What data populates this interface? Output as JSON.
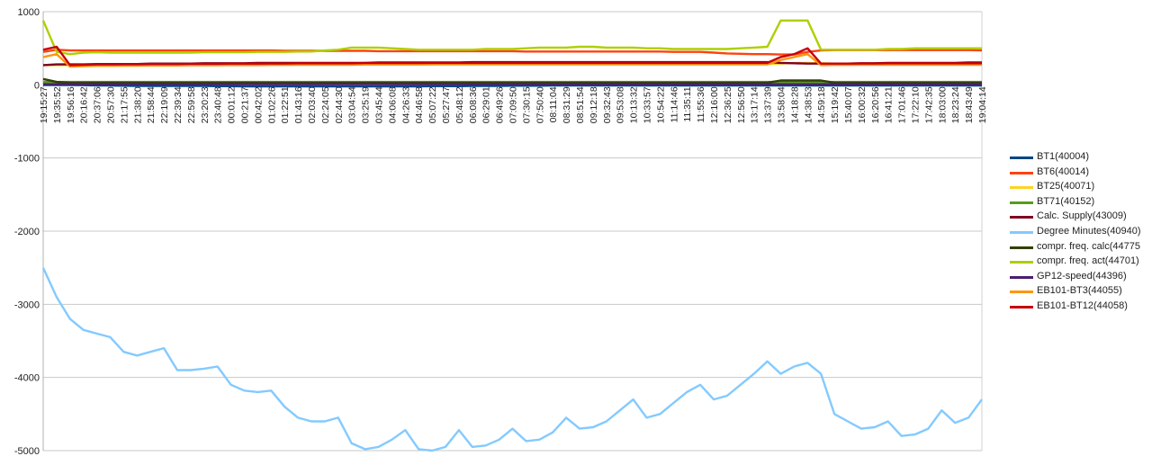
{
  "chart_data": {
    "type": "line",
    "title": "",
    "xlabel": "",
    "ylabel": "",
    "ylim": [
      -5000,
      1000
    ],
    "yticks": [
      1000,
      0,
      -1000,
      -2000,
      -3000,
      -4000,
      -5000
    ],
    "grid": true,
    "legend_position": "right",
    "categories": [
      "19:15:27",
      "19:35:52",
      "19:56:16",
      "20:16:42",
      "20:37:06",
      "20:57:30",
      "21:17:55",
      "21:38:20",
      "21:58:44",
      "22:19:09",
      "22:39:34",
      "22:59:58",
      "23:20:23",
      "23:40:48",
      "00:01:12",
      "00:21:37",
      "00:42:02",
      "01:02:26",
      "01:22:51",
      "01:43:16",
      "02:03:40",
      "02:24:05",
      "02:44:30",
      "03:04:54",
      "03:25:19",
      "03:45:44",
      "04:06:08",
      "04:26:33",
      "04:46:58",
      "05:07:22",
      "05:27:47",
      "05:48:12",
      "06:08:36",
      "06:29:01",
      "06:49:26",
      "07:09:50",
      "07:30:15",
      "07:50:40",
      "08:11:04",
      "08:31:29",
      "08:51:54",
      "09:12:18",
      "09:32:43",
      "09:53:08",
      "10:13:32",
      "10:33:57",
      "10:54:22",
      "11:14:46",
      "11:35:11",
      "11:55:36",
      "12:16:00",
      "12:36:25",
      "12:56:50",
      "13:17:14",
      "13:37:39",
      "13:58:04",
      "14:18:28",
      "14:38:53",
      "14:59:18",
      "15:19:42",
      "15:40:07",
      "16:00:32",
      "16:20:56",
      "16:41:21",
      "17:01:46",
      "17:22:10",
      "17:42:35",
      "18:03:00",
      "18:23:24",
      "18:43:49",
      "19:04:14"
    ],
    "series": [
      {
        "name": "BT1(40004)",
        "color": "#004586",
        "values": [
          -2,
          -2,
          -3,
          -5,
          -8,
          -10,
          -12,
          -15,
          -15,
          -15,
          -15,
          -15,
          -15,
          -18,
          -18,
          -20,
          -20,
          -20,
          -20,
          -20,
          -20,
          -20,
          -22,
          -22,
          -22,
          -22,
          -20,
          -20,
          -20,
          -18,
          -18,
          -18,
          -15,
          -15,
          -15,
          -12,
          -12,
          -12,
          -10,
          -10,
          -10,
          -10,
          -10,
          -8,
          -8,
          -8,
          -8,
          -8,
          -8,
          -8,
          -8,
          -10,
          -10,
          -10,
          -10,
          -10,
          -10,
          -10,
          -10,
          -10,
          -10,
          -10,
          -10,
          -10,
          -10,
          -10,
          -10,
          -10,
          -10,
          -10,
          -10
        ]
      },
      {
        "name": "BT6(40014)",
        "color": "#ff420e",
        "values": [
          450,
          480,
          470,
          470,
          470,
          470,
          470,
          470,
          470,
          470,
          470,
          470,
          470,
          470,
          470,
          470,
          470,
          470,
          465,
          465,
          465,
          465,
          465,
          465,
          465,
          460,
          460,
          460,
          460,
          460,
          460,
          460,
          460,
          460,
          460,
          460,
          455,
          455,
          455,
          455,
          455,
          455,
          455,
          455,
          455,
          455,
          455,
          450,
          450,
          450,
          440,
          430,
          425,
          420,
          420,
          415,
          415,
          450,
          470,
          475,
          475,
          475,
          475,
          475,
          475,
          475,
          475,
          475,
          475,
          475,
          470
        ]
      },
      {
        "name": "BT25(40071)",
        "color": "#ffd320",
        "values": [
          270,
          270,
          270,
          272,
          272,
          272,
          272,
          272,
          275,
          275,
          275,
          275,
          275,
          275,
          278,
          278,
          278,
          278,
          280,
          280,
          280,
          280,
          280,
          280,
          282,
          282,
          282,
          282,
          282,
          282,
          285,
          285,
          285,
          285,
          285,
          285,
          285,
          285,
          285,
          285,
          285,
          285,
          285,
          285,
          285,
          285,
          285,
          285,
          285,
          285,
          285,
          285,
          285,
          285,
          285,
          290,
          300,
          300,
          295,
          290,
          288,
          288,
          288,
          288,
          288,
          288,
          288,
          288,
          288,
          288,
          288
        ]
      },
      {
        "name": "BT71(40152)",
        "color": "#579d1c",
        "values": [
          40,
          40,
          40,
          40,
          40,
          40,
          40,
          40,
          40,
          40,
          40,
          40,
          40,
          40,
          40,
          40,
          40,
          40,
          40,
          40,
          40,
          40,
          40,
          40,
          40,
          40,
          40,
          40,
          40,
          40,
          40,
          40,
          40,
          40,
          40,
          40,
          40,
          40,
          40,
          40,
          40,
          40,
          40,
          40,
          40,
          40,
          40,
          40,
          40,
          40,
          40,
          40,
          40,
          40,
          40,
          40,
          40,
          40,
          40,
          40,
          40,
          40,
          40,
          40,
          40,
          40,
          40,
          40,
          40,
          40,
          40
        ]
      },
      {
        "name": "Calc. Supply(43009)",
        "color": "#7e0021",
        "values": [
          270,
          280,
          280,
          280,
          285,
          285,
          285,
          285,
          290,
          290,
          290,
          290,
          295,
          295,
          295,
          295,
          300,
          300,
          300,
          300,
          300,
          300,
          300,
          300,
          300,
          305,
          305,
          305,
          305,
          305,
          305,
          305,
          310,
          310,
          310,
          310,
          310,
          310,
          310,
          310,
          310,
          310,
          310,
          310,
          310,
          310,
          310,
          310,
          310,
          310,
          310,
          310,
          310,
          310,
          310,
          300,
          295,
          290,
          290,
          290,
          290,
          295,
          295,
          300,
          300,
          300,
          300,
          300,
          300,
          305,
          305
        ]
      },
      {
        "name": "Degree Minutes(40940)",
        "color": "#83caff",
        "values": [
          -2500,
          -2900,
          -3200,
          -3350,
          -3400,
          -3450,
          -3650,
          -3700,
          -3650,
          -3600,
          -3900,
          -3900,
          -3880,
          -3850,
          -4100,
          -4180,
          -4200,
          -4180,
          -4400,
          -4550,
          -4600,
          -4600,
          -4550,
          -4900,
          -4980,
          -4950,
          -4850,
          -4720,
          -4980,
          -5000,
          -4950,
          -4720,
          -4950,
          -4930,
          -4850,
          -4700,
          -4870,
          -4850,
          -4750,
          -4550,
          -4700,
          -4680,
          -4600,
          -4450,
          -4300,
          -4550,
          -4500,
          -4350,
          -4200,
          -4100,
          -4300,
          -4250,
          -4100,
          -3950,
          -3780,
          -3950,
          -3850,
          -3800,
          -3950,
          -4500,
          -4600,
          -4700,
          -4680,
          -4600,
          -4800,
          -4780,
          -4700,
          -4450,
          -4620,
          -4550,
          -4300
        ]
      },
      {
        "name": "compr. freq. calc(44775",
        "color": "#314004",
        "values": [
          80,
          40,
          30,
          30,
          30,
          30,
          30,
          30,
          30,
          30,
          30,
          30,
          30,
          30,
          30,
          30,
          30,
          30,
          30,
          30,
          30,
          30,
          30,
          30,
          30,
          30,
          30,
          30,
          30,
          30,
          30,
          30,
          30,
          30,
          30,
          30,
          30,
          30,
          30,
          30,
          30,
          30,
          30,
          30,
          30,
          30,
          30,
          30,
          30,
          30,
          30,
          30,
          30,
          30,
          30,
          60,
          60,
          60,
          60,
          30,
          30,
          30,
          30,
          30,
          30,
          30,
          30,
          30,
          30,
          30,
          30
        ]
      },
      {
        "name": "compr. freq. act(44701)",
        "color": "#aecf00",
        "values": [
          880,
          450,
          420,
          440,
          445,
          440,
          440,
          440,
          440,
          440,
          440,
          440,
          445,
          445,
          445,
          445,
          450,
          450,
          450,
          455,
          455,
          470,
          480,
          510,
          510,
          510,
          500,
          490,
          480,
          480,
          480,
          480,
          480,
          490,
          490,
          490,
          500,
          510,
          510,
          510,
          520,
          520,
          510,
          510,
          510,
          500,
          500,
          490,
          490,
          490,
          490,
          490,
          500,
          510,
          520,
          880,
          880,
          880,
          480,
          480,
          480,
          480,
          480,
          490,
          490,
          500,
          500,
          500,
          500,
          500,
          500
        ]
      },
      {
        "name": "GP12-speed(44396)",
        "color": "#4b1f6f",
        "values": [
          10,
          10,
          10,
          10,
          10,
          10,
          10,
          10,
          10,
          10,
          10,
          10,
          10,
          10,
          10,
          10,
          10,
          10,
          10,
          10,
          10,
          10,
          10,
          10,
          10,
          10,
          10,
          10,
          10,
          10,
          10,
          10,
          10,
          10,
          10,
          10,
          10,
          10,
          10,
          10,
          10,
          10,
          10,
          10,
          10,
          10,
          10,
          10,
          10,
          10,
          10,
          10,
          10,
          10,
          10,
          10,
          10,
          10,
          10,
          10,
          10,
          10,
          10,
          10,
          10,
          10,
          10,
          10,
          10,
          10,
          10
        ]
      },
      {
        "name": "EB101-BT3(44055)",
        "color": "#ff950e",
        "values": [
          380,
          420,
          250,
          255,
          260,
          260,
          262,
          262,
          265,
          265,
          265,
          268,
          268,
          268,
          270,
          270,
          270,
          272,
          272,
          275,
          275,
          275,
          275,
          275,
          278,
          278,
          278,
          278,
          278,
          280,
          280,
          280,
          280,
          280,
          280,
          280,
          280,
          280,
          280,
          280,
          280,
          280,
          280,
          280,
          280,
          280,
          280,
          280,
          280,
          280,
          280,
          280,
          280,
          280,
          280,
          340,
          380,
          420,
          270,
          272,
          272,
          275,
          275,
          275,
          275,
          275,
          275,
          275,
          275,
          275,
          275
        ]
      },
      {
        "name": "EB101-BT12(44058)",
        "color": "#c5000b",
        "values": [
          480,
          520,
          270,
          275,
          280,
          280,
          282,
          282,
          285,
          285,
          285,
          288,
          288,
          288,
          290,
          290,
          290,
          292,
          292,
          295,
          295,
          295,
          295,
          295,
          298,
          298,
          298,
          298,
          298,
          300,
          300,
          300,
          300,
          300,
          300,
          300,
          300,
          300,
          300,
          300,
          300,
          300,
          300,
          300,
          300,
          300,
          300,
          300,
          300,
          300,
          300,
          300,
          300,
          300,
          300,
          380,
          420,
          500,
          290,
          290,
          290,
          292,
          292,
          295,
          295,
          295,
          295,
          295,
          295,
          295,
          295
        ]
      }
    ]
  }
}
